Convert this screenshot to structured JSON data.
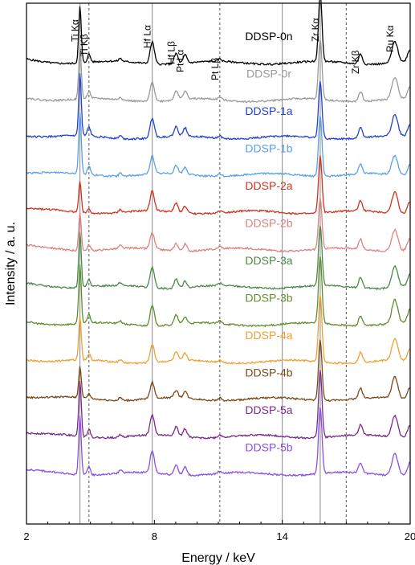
{
  "chart_data": {
    "type": "line",
    "xlabel": "Energy / keV",
    "ylabel": "Intensity / a. u.",
    "xlim": [
      2,
      20
    ],
    "xticks": [
      2,
      8,
      14,
      20
    ],
    "grid": false,
    "reference_lines": [
      {
        "x": 4.51,
        "style": "solid"
      },
      {
        "x": 4.93,
        "style": "dashed"
      },
      {
        "x": 7.9,
        "style": "solid"
      },
      {
        "x": 11.07,
        "style": "dashed"
      },
      {
        "x": 14.0,
        "style": "solid"
      },
      {
        "x": 15.78,
        "style": "solid"
      },
      {
        "x": 17.0,
        "style": "dashed"
      }
    ],
    "peak_labels": [
      {
        "text": "Ti Kα",
        "x": 4.51
      },
      {
        "text": "Ti Kβ",
        "x": 4.93
      },
      {
        "text": "Hf Lα",
        "x": 7.9
      },
      {
        "text": "Hf Lβ",
        "x": 9.02
      },
      {
        "text": "Pt Lα",
        "x": 9.44
      },
      {
        "text": "Pt Lβ",
        "x": 11.07
      },
      {
        "text": "Zr Kα",
        "x": 15.78
      },
      {
        "text": "Zr Kβ",
        "x": 17.67
      },
      {
        "text": "Ru Kα",
        "x": 19.28
      }
    ],
    "series": [
      {
        "name": "DDSP-0n",
        "color": "#000000",
        "peaks": {
          "Ti": 0.9,
          "Hf": 0.55,
          "Pt": 0.3,
          "Zr": 1.0,
          "Ru": 0.45
        }
      },
      {
        "name": "DDSP-0r",
        "color": "#9a9a9a",
        "peaks": {
          "Ti": 0.85,
          "Hf": 0.5,
          "Pt": 0.3,
          "Zr": 0.9,
          "Ru": 0.45
        }
      },
      {
        "name": "DDSP-1a",
        "color": "#2141d6",
        "peaks": {
          "Ti": 1.0,
          "Hf": 0.5,
          "Pt": 0.3,
          "Zr": 0.85,
          "Ru": 0.45
        }
      },
      {
        "name": "DDSP-1b",
        "color": "#5aa0ea",
        "peaks": {
          "Ti": 1.0,
          "Hf": 0.45,
          "Pt": 0.25,
          "Zr": 0.9,
          "Ru": 0.4
        }
      },
      {
        "name": "DDSP-2a",
        "color": "#d0321e",
        "peaks": {
          "Ti": 0.5,
          "Hf": 0.5,
          "Pt": 0.25,
          "Zr": 0.85,
          "Ru": 0.45
        }
      },
      {
        "name": "DDSP-2b",
        "color": "#e08080",
        "peaks": {
          "Ti": 0.6,
          "Hf": 0.4,
          "Pt": 0.25,
          "Zr": 0.75,
          "Ru": 0.45
        }
      },
      {
        "name": "DDSP-3a",
        "color": "#4a8a46",
        "peaks": {
          "Ti": 0.9,
          "Hf": 0.5,
          "Pt": 0.25,
          "Zr": 0.9,
          "Ru": 0.45
        }
      },
      {
        "name": "DDSP-3b",
        "color": "#5f8f2e",
        "peaks": {
          "Ti": 0.95,
          "Hf": 0.5,
          "Pt": 0.25,
          "Zr": 1.0,
          "Ru": 0.5
        }
      },
      {
        "name": "DDSP-4a",
        "color": "#f0a030",
        "peaks": {
          "Ti": 0.7,
          "Hf": 0.45,
          "Pt": 0.25,
          "Zr": 1.0,
          "Ru": 0.45
        }
      },
      {
        "name": "DDSP-4b",
        "color": "#7a4a16",
        "peaks": {
          "Ti": 0.5,
          "Hf": 0.4,
          "Pt": 0.25,
          "Zr": 0.9,
          "Ru": 0.45
        }
      },
      {
        "name": "DDSP-5a",
        "color": "#7a2a8a",
        "peaks": {
          "Ti": 0.9,
          "Hf": 0.5,
          "Pt": 0.3,
          "Zr": 1.0,
          "Ru": 0.45
        }
      },
      {
        "name": "DDSP-5b",
        "color": "#8a50e6",
        "peaks": {
          "Ti": 0.95,
          "Hf": 0.55,
          "Pt": 0.3,
          "Zr": 1.0,
          "Ru": 0.45
        }
      }
    ]
  }
}
